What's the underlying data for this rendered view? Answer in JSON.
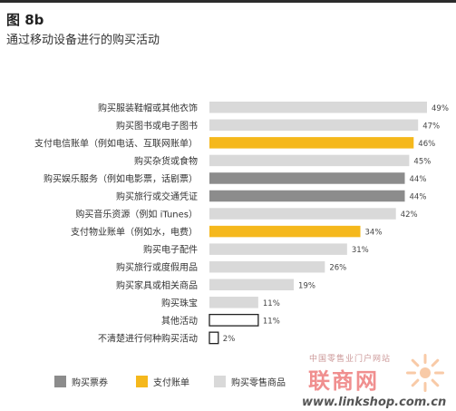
{
  "figure": {
    "number": "图 8b",
    "title": "通过移动设备进行的购买活动"
  },
  "chart_data": {
    "type": "bar",
    "orientation": "horizontal",
    "value_format": "percent",
    "categories": [
      "购买服装鞋帽或其他衣饰",
      "购买图书或电子图书",
      "支付电信账单（例如电话、互联网账单）",
      "购买杂货或食物",
      "购买娱乐服务（例如电影票，话剧票）",
      "购买旅行或交通凭证",
      "购买音乐资源（例如 iTunes）",
      "支付物业账单（例如水，电费）",
      "购买电子配件",
      "购买旅行或度假用品",
      "购买家具或相关商品",
      "购买珠宝",
      "其他活动",
      "不清楚进行何种购买活动"
    ],
    "values": [
      49,
      47,
      46,
      45,
      44,
      44,
      42,
      34,
      31,
      26,
      19,
      11,
      11,
      2
    ],
    "value_labels": [
      "49%",
      "47%",
      "46%",
      "45%",
      "44%",
      "44%",
      "42%",
      "34%",
      "31%",
      "26%",
      "19%",
      "11%",
      "11%",
      "2%"
    ],
    "groups": [
      "retail",
      "retail",
      "bill",
      "retail",
      "ticket",
      "ticket",
      "retail",
      "bill",
      "retail",
      "retail",
      "retail",
      "retail",
      "other",
      "other"
    ],
    "xlim": [
      0,
      49
    ],
    "grid": false,
    "legend_position": "bottom",
    "legend": [
      {
        "key": "ticket",
        "label": "购买票券"
      },
      {
        "key": "bill",
        "label": "支付账单"
      },
      {
        "key": "retail",
        "label": "购买零售商品"
      }
    ],
    "colors": {
      "ticket": "#8c8c8c",
      "bill": "#f5b81c",
      "retail": "#d9d9d9",
      "other": "#ffffff",
      "other_border": "#222222"
    }
  },
  "watermark": {
    "site_name": "中国零售业门户网站",
    "logo": "联商网",
    "url": "www.linkshop.com.cn"
  }
}
